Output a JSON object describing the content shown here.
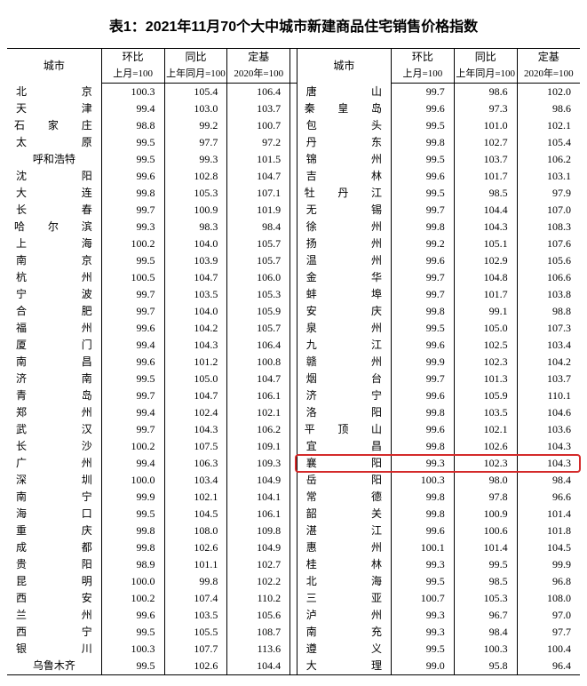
{
  "title": "表1：2021年11月70个大中城市新建商品住宅销售价格指数",
  "headers": {
    "city": "城市",
    "mom": "环比",
    "yoy": "同比",
    "base": "定基",
    "mom_sub": "上月=100",
    "yoy_sub": "上年同月=100",
    "base_sub": "2020年=100"
  },
  "highlight_row_index": 22,
  "highlight_color": "#d42a2a",
  "left": [
    {
      "c": [
        "北",
        "京"
      ],
      "v": [
        "100.3",
        "105.4",
        "106.4"
      ]
    },
    {
      "c": [
        "天",
        "津"
      ],
      "v": [
        "99.4",
        "103.0",
        "103.7"
      ]
    },
    {
      "c": [
        "石",
        "家",
        "庄"
      ],
      "v": [
        "98.8",
        "99.2",
        "100.7"
      ]
    },
    {
      "c": [
        "太",
        "原"
      ],
      "v": [
        "99.5",
        "97.7",
        "97.2"
      ]
    },
    {
      "c": [
        "呼",
        "和",
        "浩",
        "特"
      ],
      "v": [
        "99.5",
        "99.3",
        "101.5"
      ]
    },
    {
      "c": [
        "沈",
        "阳"
      ],
      "v": [
        "99.6",
        "102.8",
        "104.7"
      ]
    },
    {
      "c": [
        "大",
        "连"
      ],
      "v": [
        "99.8",
        "105.3",
        "107.1"
      ]
    },
    {
      "c": [
        "长",
        "春"
      ],
      "v": [
        "99.7",
        "100.9",
        "101.9"
      ]
    },
    {
      "c": [
        "哈",
        "尔",
        "滨"
      ],
      "v": [
        "99.3",
        "98.3",
        "98.4"
      ]
    },
    {
      "c": [
        "上",
        "海"
      ],
      "v": [
        "100.2",
        "104.0",
        "105.7"
      ]
    },
    {
      "c": [
        "南",
        "京"
      ],
      "v": [
        "99.5",
        "103.9",
        "105.7"
      ]
    },
    {
      "c": [
        "杭",
        "州"
      ],
      "v": [
        "100.5",
        "104.7",
        "106.0"
      ]
    },
    {
      "c": [
        "宁",
        "波"
      ],
      "v": [
        "99.7",
        "103.5",
        "105.3"
      ]
    },
    {
      "c": [
        "合",
        "肥"
      ],
      "v": [
        "99.7",
        "104.0",
        "105.9"
      ]
    },
    {
      "c": [
        "福",
        "州"
      ],
      "v": [
        "99.6",
        "104.2",
        "105.7"
      ]
    },
    {
      "c": [
        "厦",
        "门"
      ],
      "v": [
        "99.4",
        "104.3",
        "106.4"
      ]
    },
    {
      "c": [
        "南",
        "昌"
      ],
      "v": [
        "99.6",
        "101.2",
        "100.8"
      ]
    },
    {
      "c": [
        "济",
        "南"
      ],
      "v": [
        "99.5",
        "105.0",
        "104.7"
      ]
    },
    {
      "c": [
        "青",
        "岛"
      ],
      "v": [
        "99.7",
        "104.7",
        "106.1"
      ]
    },
    {
      "c": [
        "郑",
        "州"
      ],
      "v": [
        "99.4",
        "102.4",
        "102.1"
      ]
    },
    {
      "c": [
        "武",
        "汉"
      ],
      "v": [
        "99.7",
        "104.3",
        "106.2"
      ]
    },
    {
      "c": [
        "长",
        "沙"
      ],
      "v": [
        "100.2",
        "107.5",
        "109.1"
      ]
    },
    {
      "c": [
        "广",
        "州"
      ],
      "v": [
        "99.4",
        "106.3",
        "109.3"
      ]
    },
    {
      "c": [
        "深",
        "圳"
      ],
      "v": [
        "100.0",
        "103.4",
        "104.9"
      ]
    },
    {
      "c": [
        "南",
        "宁"
      ],
      "v": [
        "99.9",
        "102.1",
        "104.1"
      ]
    },
    {
      "c": [
        "海",
        "口"
      ],
      "v": [
        "99.5",
        "104.5",
        "106.1"
      ]
    },
    {
      "c": [
        "重",
        "庆"
      ],
      "v": [
        "99.8",
        "108.0",
        "109.8"
      ]
    },
    {
      "c": [
        "成",
        "都"
      ],
      "v": [
        "99.8",
        "102.6",
        "104.9"
      ]
    },
    {
      "c": [
        "贵",
        "阳"
      ],
      "v": [
        "98.9",
        "101.1",
        "102.7"
      ]
    },
    {
      "c": [
        "昆",
        "明"
      ],
      "v": [
        "100.0",
        "99.8",
        "102.2"
      ]
    },
    {
      "c": [
        "西",
        "安"
      ],
      "v": [
        "100.2",
        "107.4",
        "110.2"
      ]
    },
    {
      "c": [
        "兰",
        "州"
      ],
      "v": [
        "99.6",
        "103.5",
        "105.6"
      ]
    },
    {
      "c": [
        "西",
        "宁"
      ],
      "v": [
        "99.5",
        "105.5",
        "108.7"
      ]
    },
    {
      "c": [
        "银",
        "川"
      ],
      "v": [
        "100.3",
        "107.7",
        "113.6"
      ]
    },
    {
      "c": [
        "乌",
        "鲁",
        "木",
        "齐"
      ],
      "v": [
        "99.5",
        "102.6",
        "104.4"
      ]
    }
  ],
  "right": [
    {
      "c": [
        "唐",
        "山"
      ],
      "v": [
        "99.7",
        "98.6",
        "102.0"
      ]
    },
    {
      "c": [
        "秦",
        "皇",
        "岛"
      ],
      "v": [
        "99.6",
        "97.3",
        "98.6"
      ]
    },
    {
      "c": [
        "包",
        "头"
      ],
      "v": [
        "99.5",
        "101.0",
        "102.1"
      ]
    },
    {
      "c": [
        "丹",
        "东"
      ],
      "v": [
        "99.8",
        "102.7",
        "105.4"
      ]
    },
    {
      "c": [
        "锦",
        "州"
      ],
      "v": [
        "99.5",
        "103.7",
        "106.2"
      ]
    },
    {
      "c": [
        "吉",
        "林"
      ],
      "v": [
        "99.6",
        "101.7",
        "103.1"
      ]
    },
    {
      "c": [
        "牡",
        "丹",
        "江"
      ],
      "v": [
        "99.5",
        "98.5",
        "97.9"
      ]
    },
    {
      "c": [
        "无",
        "锡"
      ],
      "v": [
        "99.7",
        "104.4",
        "107.0"
      ]
    },
    {
      "c": [
        "徐",
        "州"
      ],
      "v": [
        "99.8",
        "104.3",
        "108.3"
      ]
    },
    {
      "c": [
        "扬",
        "州"
      ],
      "v": [
        "99.2",
        "105.1",
        "107.6"
      ]
    },
    {
      "c": [
        "温",
        "州"
      ],
      "v": [
        "99.6",
        "102.9",
        "105.6"
      ]
    },
    {
      "c": [
        "金",
        "华"
      ],
      "v": [
        "99.7",
        "104.8",
        "106.6"
      ]
    },
    {
      "c": [
        "蚌",
        "埠"
      ],
      "v": [
        "99.7",
        "101.7",
        "103.8"
      ]
    },
    {
      "c": [
        "安",
        "庆"
      ],
      "v": [
        "99.8",
        "99.1",
        "98.8"
      ]
    },
    {
      "c": [
        "泉",
        "州"
      ],
      "v": [
        "99.5",
        "105.0",
        "107.3"
      ]
    },
    {
      "c": [
        "九",
        "江"
      ],
      "v": [
        "99.6",
        "102.5",
        "103.4"
      ]
    },
    {
      "c": [
        "赣",
        "州"
      ],
      "v": [
        "99.9",
        "102.3",
        "104.2"
      ]
    },
    {
      "c": [
        "烟",
        "台"
      ],
      "v": [
        "99.7",
        "101.3",
        "103.7"
      ]
    },
    {
      "c": [
        "济",
        "宁"
      ],
      "v": [
        "99.6",
        "105.9",
        "110.1"
      ]
    },
    {
      "c": [
        "洛",
        "阳"
      ],
      "v": [
        "99.8",
        "103.5",
        "104.6"
      ]
    },
    {
      "c": [
        "平",
        "顶",
        "山"
      ],
      "v": [
        "99.6",
        "102.1",
        "103.6"
      ]
    },
    {
      "c": [
        "宜",
        "昌"
      ],
      "v": [
        "99.8",
        "102.6",
        "104.3"
      ]
    },
    {
      "c": [
        "襄",
        "阳"
      ],
      "v": [
        "99.3",
        "102.3",
        "104.3"
      ]
    },
    {
      "c": [
        "岳",
        "阳"
      ],
      "v": [
        "100.3",
        "98.0",
        "98.4"
      ]
    },
    {
      "c": [
        "常",
        "德"
      ],
      "v": [
        "99.8",
        "97.8",
        "96.6"
      ]
    },
    {
      "c": [
        "韶",
        "关"
      ],
      "v": [
        "99.8",
        "100.9",
        "101.4"
      ]
    },
    {
      "c": [
        "湛",
        "江"
      ],
      "v": [
        "99.6",
        "100.6",
        "101.8"
      ]
    },
    {
      "c": [
        "惠",
        "州"
      ],
      "v": [
        "100.1",
        "101.4",
        "104.5"
      ]
    },
    {
      "c": [
        "桂",
        "林"
      ],
      "v": [
        "99.3",
        "99.5",
        "99.9"
      ]
    },
    {
      "c": [
        "北",
        "海"
      ],
      "v": [
        "99.5",
        "98.5",
        "96.8"
      ]
    },
    {
      "c": [
        "三",
        "亚"
      ],
      "v": [
        "100.7",
        "105.3",
        "108.0"
      ]
    },
    {
      "c": [
        "泸",
        "州"
      ],
      "v": [
        "99.3",
        "96.7",
        "97.0"
      ]
    },
    {
      "c": [
        "南",
        "充"
      ],
      "v": [
        "99.3",
        "98.4",
        "97.7"
      ]
    },
    {
      "c": [
        "遵",
        "义"
      ],
      "v": [
        "99.5",
        "100.3",
        "100.4"
      ]
    },
    {
      "c": [
        "大",
        "理"
      ],
      "v": [
        "99.0",
        "95.8",
        "96.4"
      ]
    }
  ]
}
